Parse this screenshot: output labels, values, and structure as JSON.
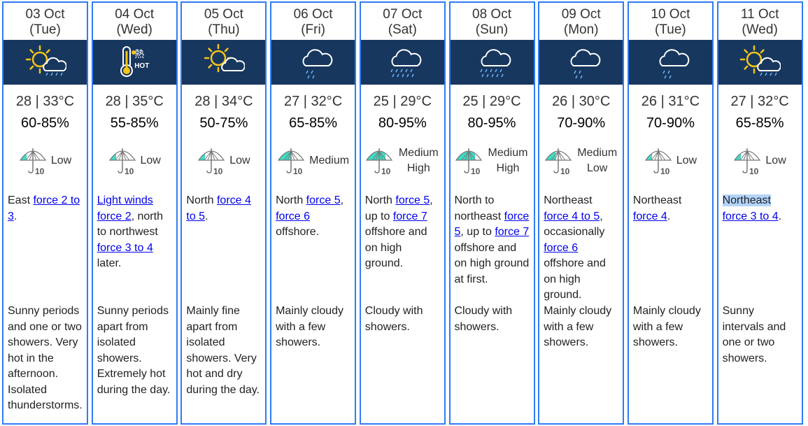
{
  "colors": {
    "border": "#2f7cf6",
    "icon_band": "#17375e",
    "umbrella_fill": "#3fdcc4",
    "link": "#0000ee",
    "selection": "#b3d4fc"
  },
  "days": [
    {
      "date": "03 Oct",
      "weekday": "(Tue)",
      "icon": "sun-cloud-rain-icon",
      "temp": "28 | 33°C",
      "rh": "60-85%",
      "psr": "Low",
      "psr_level": 0.25,
      "wind": [
        {
          "t": "East "
        },
        {
          "t": "force 2 to 3",
          "link": true
        },
        {
          "t": "."
        }
      ],
      "forecast": "Sunny periods and one or two showers. Very hot in the afternoon. Isolated thunderstorms."
    },
    {
      "date": "04 Oct",
      "weekday": "(Wed)",
      "icon": "hot-icon",
      "icon_text": "熱",
      "icon_text2": "HOT",
      "temp": "28 | 35°C",
      "rh": "55-85%",
      "psr": "Low",
      "psr_level": 0.25,
      "wind": [
        {
          "t": "Light winds force 2",
          "link": true
        },
        {
          "t": ", north to northwest "
        },
        {
          "t": "force 3 to 4",
          "link": true
        },
        {
          "t": " later."
        }
      ],
      "forecast": "Sunny periods apart from isolated showers. Extremely hot during the day."
    },
    {
      "date": "05 Oct",
      "weekday": "(Thu)",
      "icon": "sun-cloud-icon",
      "temp": "28 | 34°C",
      "rh": "50-75%",
      "psr": "Low",
      "psr_level": 0.25,
      "wind": [
        {
          "t": "North "
        },
        {
          "t": "force 4 to 5",
          "link": true
        },
        {
          "t": "."
        }
      ],
      "forecast": "Mainly fine apart from isolated showers. Very hot and dry during the day."
    },
    {
      "date": "06 Oct",
      "weekday": "(Fri)",
      "icon": "cloud-rain-icon",
      "temp": "27 | 32°C",
      "rh": "65-85%",
      "psr": "Medium",
      "psr_level": 0.5,
      "wind": [
        {
          "t": "North "
        },
        {
          "t": "force 5",
          "link": true
        },
        {
          "t": ", "
        },
        {
          "t": "force 6",
          "link": true
        },
        {
          "t": " offshore."
        }
      ],
      "forecast": "Mainly cloudy with a few showers."
    },
    {
      "date": "07 Oct",
      "weekday": "(Sat)",
      "icon": "cloud-heavy-rain-icon",
      "temp": "25 | 29°C",
      "rh": "80-95%",
      "psr": "Medium High",
      "psr_level": 0.75,
      "wind": [
        {
          "t": "North "
        },
        {
          "t": "force 5",
          "link": true
        },
        {
          "t": ", up to "
        },
        {
          "t": "force 7",
          "link": true
        },
        {
          "t": " offshore and on high ground."
        }
      ],
      "forecast": "Cloudy with showers."
    },
    {
      "date": "08 Oct",
      "weekday": "(Sun)",
      "icon": "cloud-heavy-rain-icon",
      "temp": "25 | 29°C",
      "rh": "80-95%",
      "psr": "Medium High",
      "psr_level": 0.75,
      "wind": [
        {
          "t": "North to northeast "
        },
        {
          "t": "force 5",
          "link": true
        },
        {
          "t": ", up to "
        },
        {
          "t": "force 7",
          "link": true
        },
        {
          "t": " offshore and on high ground at first."
        }
      ],
      "forecast": "Cloudy with showers."
    },
    {
      "date": "09 Oct",
      "weekday": "(Mon)",
      "icon": "cloud-rain-icon",
      "temp": "26 | 30°C",
      "rh": "70-90%",
      "psr": "Medium Low",
      "psr_level": 0.4,
      "wind": [
        {
          "t": "Northeast "
        },
        {
          "t": "force 4 to 5",
          "link": true
        },
        {
          "t": ", occasionally "
        },
        {
          "t": "force 6",
          "link": true
        },
        {
          "t": " offshore and on high ground."
        }
      ],
      "forecast": "Mainly cloudy with a few showers."
    },
    {
      "date": "10 Oct",
      "weekday": "(Tue)",
      "icon": "cloud-rain-icon",
      "temp": "26 | 31°C",
      "rh": "70-90%",
      "psr": "Low",
      "psr_level": 0.25,
      "wind": [
        {
          "t": "Northeast "
        },
        {
          "t": "force 4",
          "link": true
        },
        {
          "t": "."
        }
      ],
      "forecast": "Mainly cloudy with a few showers."
    },
    {
      "date": "11 Oct",
      "weekday": "(Wed)",
      "icon": "sun-cloud-rain-icon",
      "temp": "27 | 32°C",
      "rh": "65-85%",
      "psr": "Low",
      "psr_level": 0.25,
      "wind": [
        {
          "t": "Northeast",
          "selected": true
        },
        {
          "t": " "
        },
        {
          "t": "force 3 to 4",
          "link": true
        },
        {
          "t": "."
        }
      ],
      "forecast": "Sunny intervals and one or two showers."
    }
  ]
}
